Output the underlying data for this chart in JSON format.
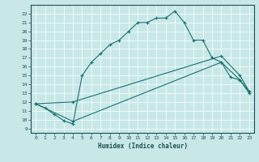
{
  "xlabel": "Humidex (Indice chaleur)",
  "background_color": "#c8e8e8",
  "grid_color": "#ffffff",
  "line_color": "#1a7070",
  "xlim": [
    -0.5,
    23.5
  ],
  "ylim": [
    8.5,
    23.0
  ],
  "xticks": [
    0,
    1,
    2,
    3,
    4,
    5,
    6,
    7,
    8,
    9,
    10,
    11,
    12,
    13,
    14,
    15,
    16,
    17,
    18,
    19,
    20,
    21,
    22,
    23
  ],
  "yticks": [
    9,
    10,
    11,
    12,
    13,
    14,
    15,
    16,
    17,
    18,
    19,
    20,
    21,
    22
  ],
  "line1_x": [
    0,
    1,
    2,
    3,
    4,
    5,
    6,
    7,
    8,
    9,
    10,
    11,
    12,
    13,
    14,
    15,
    16,
    17,
    18,
    19,
    20,
    21,
    22,
    23
  ],
  "line1_y": [
    11.8,
    11.3,
    10.6,
    9.9,
    9.5,
    15.0,
    16.5,
    17.5,
    18.5,
    19.0,
    20.0,
    21.0,
    21.0,
    21.5,
    21.5,
    22.3,
    21.0,
    19.0,
    19.0,
    17.0,
    16.5,
    14.8,
    14.5,
    13.0
  ],
  "line2_x": [
    0,
    4,
    20,
    22,
    23
  ],
  "line2_y": [
    11.8,
    12.0,
    17.2,
    15.0,
    13.2
  ],
  "line3_x": [
    0,
    4,
    20,
    22,
    23
  ],
  "line3_y": [
    11.8,
    9.8,
    16.5,
    14.5,
    13.2
  ]
}
